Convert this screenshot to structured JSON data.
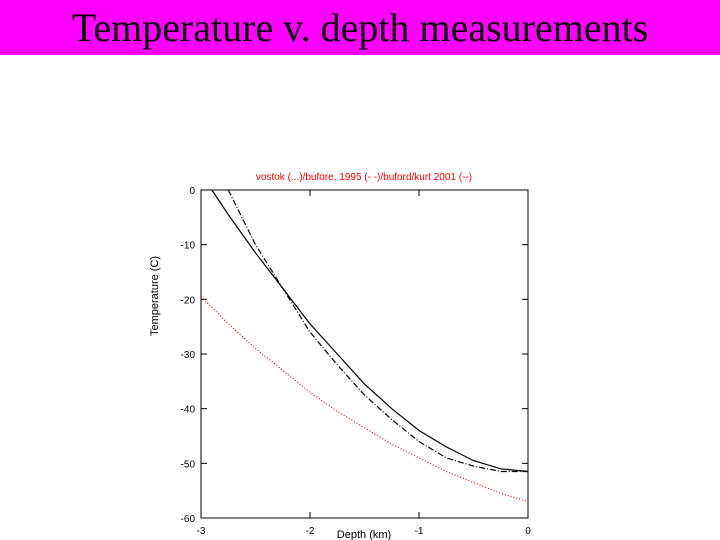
{
  "slide": {
    "title": "Temperature v. depth measurements",
    "title_bar_color": "#ff00ff"
  },
  "chart_data": {
    "type": "line",
    "title": "vostok (...)/bufore, 1995 (- -)/buford/kurt 2001 (--)",
    "title_color": "#ff0000",
    "xlabel": "Depth (km)",
    "ylabel": "Temperature (C)",
    "xlim": [
      -3,
      0
    ],
    "ylim": [
      -60,
      0
    ],
    "xticks": [
      -3,
      -2,
      -1,
      0
    ],
    "yticks": [
      0,
      -10,
      -20,
      -30,
      -40,
      -50,
      -60
    ],
    "grid": false,
    "series": [
      {
        "style": "solid",
        "color": "#000000",
        "x": [
          -2.9,
          -2.75,
          -2.5,
          -2.25,
          -2.0,
          -1.75,
          -1.5,
          -1.25,
          -1.0,
          -0.75,
          -0.5,
          -0.25,
          0.0
        ],
        "y": [
          0.0,
          -4.5,
          -11.5,
          -18.0,
          -24.5,
          -30.0,
          -35.5,
          -40.0,
          -44.0,
          -47.0,
          -49.5,
          -51.0,
          -51.5
        ]
      },
      {
        "style": "dash-dot",
        "color": "#000000",
        "x": [
          -2.75,
          -2.6,
          -2.5,
          -2.25,
          -2.0,
          -1.75,
          -1.5,
          -1.25,
          -1.0,
          -0.75,
          -0.5,
          -0.25,
          0.0
        ],
        "y": [
          0.0,
          -6.0,
          -10.0,
          -18.0,
          -26.0,
          -32.0,
          -37.5,
          -42.0,
          -46.0,
          -49.0,
          -50.5,
          -51.5,
          -51.5
        ]
      },
      {
        "style": "dotted",
        "color": "#ff0000",
        "x": [
          -3.0,
          -2.75,
          -2.5,
          -2.25,
          -2.0,
          -1.75,
          -1.5,
          -1.25,
          -1.0,
          -0.75,
          -0.5,
          -0.25,
          0.0
        ],
        "y": [
          -19.5,
          -24.5,
          -29.0,
          -33.0,
          -37.0,
          -40.5,
          -43.5,
          -46.5,
          -49.0,
          -51.5,
          -53.5,
          -55.5,
          -57.0
        ]
      }
    ]
  }
}
